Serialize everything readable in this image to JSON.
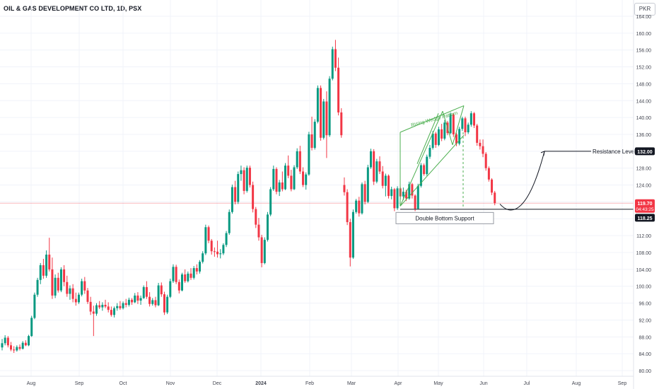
{
  "header": {
    "title": "OIL & GAS DEVELOPMENT CO LTD, 1D, PSX",
    "currency": "PKR"
  },
  "colors": {
    "up": "#089981",
    "down": "#f23645",
    "annotation": "#4caf50",
    "price_label_bg": "#f23645",
    "level_label_bg": "#131722",
    "grid": "#f0f3fa",
    "text": "#131722",
    "axis_text": "#434651"
  },
  "chart_data": {
    "type": "candlestick",
    "title": "OIL & GAS DEVELOPMENT CO LTD, 1D, PSX",
    "currency": "PKR",
    "x_ticks": [
      "Aug",
      "Sep",
      "Oct",
      "Nov",
      "Dec",
      "2024",
      "Feb",
      "Mar",
      "Apr",
      "May",
      "Jun",
      "Jul",
      "Aug",
      "Sep"
    ],
    "y_ticks": [
      "80.00",
      "84.00",
      "88.00",
      "92.00",
      "96.00",
      "100.00",
      "104.00",
      "108.00",
      "112.00",
      "116.00",
      "120.00",
      "124.00",
      "128.00",
      "132.00",
      "136.00",
      "140.00",
      "144.00",
      "148.00",
      "152.00",
      "156.00",
      "160.00",
      "164.00"
    ],
    "ylim": [
      79,
      164.5
    ],
    "grid": true,
    "candles": [
      [
        0,
        85.5,
        87.5,
        84.8,
        86.5
      ],
      [
        1,
        86.5,
        88.4,
        86,
        87.8
      ],
      [
        2,
        87.8,
        88.2,
        85.5,
        86
      ],
      [
        3,
        86,
        86.8,
        84.6,
        85
      ],
      [
        4,
        85,
        85.8,
        84.2,
        84.8
      ],
      [
        5,
        84.8,
        86,
        84.5,
        85.6
      ],
      [
        6,
        85.6,
        86.2,
        84.8,
        85.2
      ],
      [
        7,
        85.2,
        87,
        85,
        86.6
      ],
      [
        8,
        86.6,
        87.2,
        85.8,
        86
      ],
      [
        9,
        86,
        88.5,
        85.8,
        88.2
      ],
      [
        10,
        88.2,
        93,
        88,
        92.5
      ],
      [
        11,
        92.5,
        98.5,
        92.2,
        98
      ],
      [
        12,
        98,
        102,
        97.5,
        101.5
      ],
      [
        13,
        101.5,
        105.5,
        100.5,
        105
      ],
      [
        14,
        105,
        106.5,
        101.8,
        102.5
      ],
      [
        15,
        102.5,
        108.5,
        102,
        107.5
      ],
      [
        16,
        107.5,
        111.5,
        103.5,
        104
      ],
      [
        17,
        104,
        106.8,
        97,
        97.8
      ],
      [
        18,
        97.8,
        102.8,
        97.2,
        102
      ],
      [
        19,
        102,
        103.2,
        98.5,
        99
      ],
      [
        20,
        99,
        104.5,
        98.6,
        104
      ],
      [
        21,
        104,
        105,
        100,
        101
      ],
      [
        22,
        101,
        102.5,
        97.5,
        98.2
      ],
      [
        23,
        98.2,
        100.2,
        96.8,
        99.5
      ],
      [
        24,
        99.5,
        100.5,
        96.2,
        97
      ],
      [
        25,
        97,
        98.5,
        95.4,
        96.2
      ],
      [
        26,
        96.2,
        98.5,
        95.8,
        98
      ],
      [
        27,
        98,
        101.8,
        97.6,
        101.2
      ],
      [
        28,
        101.2,
        102.2,
        98.2,
        99
      ],
      [
        29,
        99,
        99.6,
        95.8,
        96.3
      ],
      [
        30,
        96.3,
        97.5,
        93.2,
        94
      ],
      [
        31,
        94,
        95.4,
        88.2,
        93.5
      ],
      [
        32,
        93.5,
        96,
        93,
        95.5
      ],
      [
        33,
        95.5,
        96.5,
        94.6,
        95
      ],
      [
        34,
        95,
        96.2,
        94.2,
        95.6
      ],
      [
        35,
        95.6,
        96.8,
        94.8,
        95.2
      ],
      [
        36,
        95.2,
        96.2,
        93.8,
        94.4
      ],
      [
        37,
        94.4,
        95.2,
        92.8,
        93.2
      ],
      [
        38,
        93.2,
        95.2,
        92.6,
        94.8
      ],
      [
        39,
        94.8,
        96,
        94.2,
        95.3
      ],
      [
        40,
        95.3,
        96.5,
        94.4,
        94.8
      ],
      [
        41,
        94.8,
        96.4,
        94.5,
        96
      ],
      [
        42,
        96,
        97,
        95,
        95.6
      ],
      [
        43,
        95.6,
        97.3,
        95.2,
        96.8
      ],
      [
        44,
        96.8,
        97.2,
        95.6,
        96.2
      ],
      [
        45,
        96.2,
        98.4,
        96,
        97.8
      ],
      [
        46,
        97.8,
        98.6,
        95.8,
        96.6
      ],
      [
        47,
        96.6,
        97.8,
        95.6,
        97.2
      ],
      [
        48,
        97.2,
        100.2,
        97,
        99.8
      ],
      [
        49,
        99.8,
        101.2,
        97,
        97.5
      ],
      [
        50,
        97.5,
        98.6,
        95.2,
        95.8
      ],
      [
        51,
        95.8,
        97.2,
        95.4,
        96.7
      ],
      [
        52,
        96.7,
        97.5,
        95,
        95.5
      ],
      [
        53,
        95.5,
        100.8,
        95.3,
        100.2
      ],
      [
        54,
        100.2,
        100.9,
        97.5,
        98.1
      ],
      [
        55,
        98.1,
        98.7,
        93.2,
        93.8
      ],
      [
        56,
        93.8,
        98,
        93.4,
        97.5
      ],
      [
        57,
        97.5,
        101.8,
        97.2,
        101.2
      ],
      [
        58,
        101.2,
        105.2,
        100.8,
        104.6
      ],
      [
        59,
        104.6,
        105.1,
        100.5,
        101
      ],
      [
        60,
        101,
        101.6,
        98.3,
        99
      ],
      [
        61,
        99,
        103.2,
        98.8,
        102.8
      ],
      [
        62,
        102.8,
        104,
        100.8,
        101.2
      ],
      [
        63,
        101.2,
        103.5,
        100.9,
        103
      ],
      [
        64,
        103,
        104.3,
        101.5,
        102
      ],
      [
        65,
        102,
        104.8,
        101.6,
        104.3
      ],
      [
        66,
        104.3,
        105.2,
        102.8,
        103.5
      ],
      [
        67,
        103.5,
        106.2,
        103,
        105.8
      ],
      [
        68,
        105.8,
        108.3,
        105.4,
        107.8
      ],
      [
        69,
        107.8,
        114.6,
        107.4,
        114
      ],
      [
        70,
        114,
        114.4,
        110.2,
        110.8
      ],
      [
        71,
        110.8,
        111.2,
        107.5,
        108.3
      ],
      [
        72,
        108.3,
        109.2,
        107,
        108.2
      ],
      [
        73,
        108.2,
        110.8,
        106.8,
        107.6
      ],
      [
        74,
        107.6,
        108.8,
        106.6,
        107.8
      ],
      [
        75,
        107.8,
        110.2,
        107.4,
        109.8
      ],
      [
        76,
        109.8,
        113.1,
        109.3,
        112.6
      ],
      [
        77,
        112.6,
        118.2,
        112.2,
        117.6
      ],
      [
        78,
        117.6,
        124.1,
        117.2,
        123.5
      ],
      [
        79,
        123.5,
        125,
        119.4,
        120
      ],
      [
        80,
        120,
        127.2,
        119.5,
        126.6
      ],
      [
        81,
        126.6,
        128.6,
        125,
        127.5
      ],
      [
        82,
        127.5,
        128.2,
        121.8,
        122.6
      ],
      [
        83,
        122.6,
        128.6,
        122.2,
        128.1
      ],
      [
        84,
        128.1,
        128.6,
        123.4,
        124
      ],
      [
        85,
        124,
        124.8,
        117.5,
        118.3
      ],
      [
        86,
        118.3,
        118.8,
        113.8,
        114.6
      ],
      [
        87,
        114.6,
        116.2,
        110.8,
        111.6
      ],
      [
        88,
        111.6,
        112.2,
        104.5,
        105.5
      ],
      [
        89,
        105.5,
        111.6,
        105.2,
        111
      ],
      [
        90,
        111,
        117.6,
        110.6,
        117
      ],
      [
        91,
        117,
        123.5,
        116.6,
        123
      ],
      [
        92,
        123,
        128.6,
        122.6,
        127.8
      ],
      [
        93,
        127.8,
        128.2,
        121.8,
        122.4
      ],
      [
        94,
        122.4,
        125.2,
        121.4,
        124.6
      ],
      [
        95,
        124.6,
        127.2,
        122.5,
        123
      ],
      [
        96,
        123,
        129.2,
        122.8,
        128.6
      ],
      [
        97,
        128.6,
        131,
        125.6,
        126.2
      ],
      [
        98,
        126.2,
        127.6,
        122.5,
        123
      ],
      [
        99,
        123,
        128.7,
        122.8,
        128.2
      ],
      [
        100,
        128.2,
        132.7,
        127.8,
        132
      ],
      [
        101,
        132,
        133.3,
        126.6,
        127.2
      ],
      [
        102,
        127.2,
        128.2,
        123.5,
        124
      ],
      [
        103,
        124,
        127,
        122.9,
        126.5
      ],
      [
        104,
        126.5,
        136.6,
        126.2,
        136
      ],
      [
        105,
        136,
        140.2,
        132.2,
        132.8
      ],
      [
        106,
        132.8,
        139.6,
        132.4,
        139
      ],
      [
        107,
        139,
        147.6,
        138.6,
        147
      ],
      [
        108,
        147,
        147.6,
        134.5,
        135.2
      ],
      [
        109,
        135.2,
        144.4,
        134.8,
        143.8
      ],
      [
        110,
        143.8,
        146.2,
        130.4,
        135.8
      ],
      [
        111,
        135.8,
        149.8,
        135.4,
        149.2
      ],
      [
        112,
        149.2,
        156.8,
        148.8,
        156.2
      ],
      [
        113,
        156.2,
        158.4,
        151,
        151.8
      ],
      [
        114,
        151.8,
        154.2,
        140.5,
        141.2
      ],
      [
        115,
        141.2,
        142.2,
        135.2,
        135.8
      ],
      [
        116,
        124,
        125.8,
        121.5,
        122.3
      ],
      [
        117,
        122.3,
        123,
        114.5,
        115.2
      ],
      [
        118,
        115.2,
        116,
        104.7,
        106.8
      ],
      [
        119,
        106.8,
        118.2,
        106.5,
        117.6
      ],
      [
        120,
        117.6,
        120.7,
        117.2,
        120.3
      ],
      [
        121,
        120.3,
        121.2,
        116.5,
        117.3
      ],
      [
        122,
        117.3,
        124.6,
        117,
        124.2
      ],
      [
        123,
        124.2,
        125,
        119.4,
        120
      ],
      [
        124,
        120,
        128.8,
        119.7,
        128.2
      ],
      [
        125,
        128.2,
        132.6,
        127.8,
        132
      ],
      [
        126,
        132,
        132.5,
        124,
        124.8
      ],
      [
        127,
        124.8,
        130.2,
        124.4,
        129.6
      ],
      [
        128,
        129.6,
        130.8,
        126.6,
        127.2
      ],
      [
        129,
        127.2,
        128.5,
        123.2,
        123.8
      ],
      [
        130,
        123.8,
        126.7,
        121.3,
        126.2
      ],
      [
        131,
        126.2,
        126.5,
        120.8,
        121.4
      ],
      [
        132,
        121.4,
        123.6,
        120.6,
        123
      ],
      [
        133,
        123,
        123.3,
        117.8,
        118.5
      ],
      [
        134,
        118.5,
        123.7,
        118.1,
        123.2
      ],
      [
        135,
        123.2,
        123.6,
        120.6,
        121.3
      ],
      [
        136,
        121.3,
        123.4,
        120.4,
        122.4
      ],
      [
        137,
        122.4,
        122.9,
        120.2,
        120.8
      ],
      [
        138,
        120.8,
        124.8,
        120.5,
        124.2
      ],
      [
        139,
        124.2,
        124.5,
        120.8,
        121.5
      ],
      [
        140,
        121.5,
        121.8,
        117.8,
        118.4
      ],
      [
        141,
        118.4,
        124.3,
        118.2,
        123.8
      ],
      [
        142,
        123.8,
        129.2,
        123.4,
        128.7
      ],
      [
        143,
        128.7,
        129.1,
        126.2,
        126.6
      ],
      [
        144,
        126.6,
        131.2,
        126.2,
        130.7
      ],
      [
        145,
        130.7,
        133.5,
        130.2,
        132.8
      ],
      [
        146,
        132.8,
        136.8,
        132.4,
        136.2
      ],
      [
        147,
        136.2,
        136.6,
        132.8,
        133.5
      ],
      [
        148,
        133.5,
        137.8,
        133.2,
        137.2
      ],
      [
        149,
        137.2,
        138.5,
        134.4,
        135
      ],
      [
        150,
        135,
        139.4,
        134.6,
        138.8
      ],
      [
        151,
        138.8,
        139.2,
        135.8,
        136.3
      ],
      [
        152,
        136.3,
        141.2,
        136,
        140.7
      ],
      [
        153,
        140.7,
        141,
        135.4,
        136
      ],
      [
        154,
        136,
        136.4,
        133.2,
        133.8
      ],
      [
        155,
        133.8,
        137.8,
        133.4,
        137.3
      ],
      [
        156,
        137.3,
        140.2,
        136.8,
        139.8
      ],
      [
        157,
        139.8,
        140.2,
        135.6,
        136.5
      ],
      [
        158,
        136.5,
        138.8,
        136.1,
        138.3
      ],
      [
        159,
        138.3,
        141.5,
        137.8,
        141
      ],
      [
        160,
        141,
        141.3,
        137.5,
        138.1
      ],
      [
        161,
        138.1,
        138.5,
        133.3,
        134
      ],
      [
        162,
        134,
        134.8,
        132.4,
        133.2
      ],
      [
        163,
        133.2,
        134.8,
        130.6,
        131.4
      ],
      [
        164,
        131.4,
        131.8,
        127.4,
        128
      ],
      [
        165,
        128,
        128.4,
        124.8,
        125.3
      ],
      [
        166,
        125.3,
        125.6,
        121.6,
        122.2
      ],
      [
        167,
        122.2,
        122.6,
        119.2,
        119.7
      ]
    ],
    "price_labels": {
      "last_price": "119.70",
      "countdown": "04:43:25",
      "support": "118.25",
      "resistance": "132.00"
    },
    "levels": {
      "support": 118.25,
      "resistance": 132.0
    },
    "annotations": {
      "wedge_label": "Rising Wedge Pattern",
      "support_label": "Double Bottom Support",
      "resistance_label": "Resistance Level"
    }
  }
}
